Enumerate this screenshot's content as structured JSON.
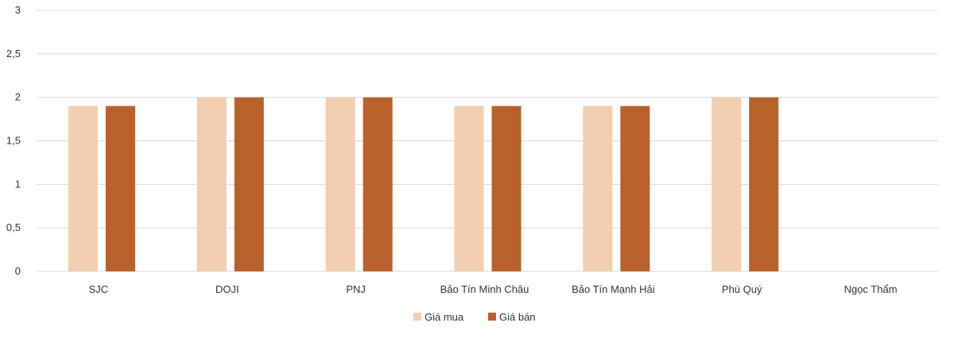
{
  "chart_data": {
    "type": "bar",
    "title": "",
    "xlabel": "",
    "ylabel": "",
    "categories": [
      "SJC",
      "DOJI",
      "PNJ",
      "Bảo Tín Minh Châu",
      "Bảo Tín Mạnh Hải",
      "Phú Quý",
      "Ngọc Thẩm"
    ],
    "series": [
      {
        "name": "Giá mua",
        "color": "#F2CEB0",
        "values": [
          1.9,
          2,
          2,
          1.9,
          1.9,
          2,
          null
        ]
      },
      {
        "name": "Giá bán",
        "color": "#B8612B",
        "values": [
          1.9,
          2,
          2,
          1.9,
          1.9,
          2,
          null
        ]
      }
    ],
    "ylim": [
      0,
      3
    ],
    "yticks": [
      "0",
      "0,5",
      "1",
      "1,5",
      "2",
      "2,5",
      "3"
    ],
    "grid": true,
    "legend": "bottom"
  }
}
